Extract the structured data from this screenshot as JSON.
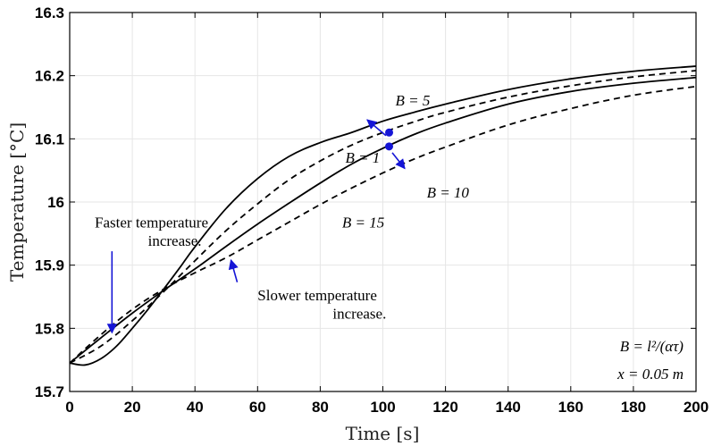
{
  "chart_data": {
    "type": "line",
    "title": "",
    "xlabel": "Time [s]",
    "ylabel": "Temperature [°C]",
    "xlim": [
      0,
      200
    ],
    "ylim": [
      15.7,
      16.3
    ],
    "xticks": [
      0,
      20,
      40,
      60,
      80,
      100,
      120,
      140,
      160,
      180,
      200
    ],
    "yticks": [
      15.7,
      15.8,
      15.9,
      16,
      16.1,
      16.2,
      16.3
    ],
    "xtick_labels": [
      "0",
      "20",
      "40",
      "60",
      "80",
      "100",
      "120",
      "140",
      "160",
      "180",
      "200"
    ],
    "ytick_labels": [
      "15.7",
      "15.8",
      "15.9",
      "16",
      "16.1",
      "16.2",
      "16.3"
    ],
    "grid": true,
    "colors": {
      "curve": "#000000",
      "marker": "#1515d6",
      "arrow": "#1515d6",
      "grid": "#e6e6e6"
    },
    "series": [
      {
        "name": "B = 1",
        "style": "solid",
        "x": [
          0,
          5,
          10,
          15,
          20,
          25,
          30,
          35,
          40,
          50,
          60,
          70,
          80,
          90,
          100,
          110,
          120,
          140,
          160,
          180,
          200
        ],
        "y": [
          15.745,
          15.742,
          15.752,
          15.772,
          15.8,
          15.83,
          15.862,
          15.895,
          15.929,
          15.99,
          16.037,
          16.072,
          16.094,
          16.11,
          16.128,
          16.142,
          16.155,
          16.178,
          16.195,
          16.207,
          16.215
        ]
      },
      {
        "name": "B = 5",
        "style": "dashed",
        "x": [
          0,
          10,
          20,
          30,
          40,
          50,
          60,
          70,
          80,
          90,
          100,
          110,
          120,
          140,
          160,
          180,
          200
        ],
        "y": [
          15.745,
          15.772,
          15.812,
          15.858,
          15.907,
          15.955,
          15.997,
          16.035,
          16.065,
          16.09,
          16.11,
          16.127,
          16.142,
          16.166,
          16.184,
          16.198,
          16.208
        ]
      },
      {
        "name": "B = 10",
        "style": "solid",
        "x": [
          0,
          10,
          20,
          30,
          40,
          50,
          60,
          70,
          80,
          90,
          100,
          110,
          120,
          140,
          160,
          180,
          200
        ],
        "y": [
          15.745,
          15.785,
          15.824,
          15.86,
          15.894,
          15.93,
          15.965,
          15.998,
          16.03,
          16.06,
          16.085,
          16.107,
          16.125,
          16.155,
          16.175,
          16.188,
          16.197
        ]
      },
      {
        "name": "B = 15",
        "style": "dashed",
        "x": [
          0,
          10,
          20,
          30,
          40,
          50,
          60,
          70,
          80,
          90,
          100,
          110,
          120,
          140,
          160,
          180,
          200
        ],
        "y": [
          15.745,
          15.79,
          15.83,
          15.862,
          15.888,
          15.912,
          15.94,
          15.968,
          15.996,
          16.022,
          16.046,
          16.068,
          16.087,
          16.122,
          16.148,
          16.169,
          16.183
        ]
      }
    ],
    "markers": [
      {
        "x": 102,
        "y": 16.11
      },
      {
        "x": 102,
        "y": 16.088
      }
    ],
    "annotations": [
      {
        "id": "b1",
        "text": "B = 1",
        "x": 88,
        "y": 16.062
      },
      {
        "id": "b5",
        "text": "B = 5",
        "x": 104,
        "y": 16.153
      },
      {
        "id": "b10",
        "text": "B = 10",
        "x": 114,
        "y": 16.007
      },
      {
        "id": "b15",
        "text": "B = 15",
        "x": 87,
        "y": 15.96
      },
      {
        "id": "faster1",
        "text": "Faster temperature",
        "x": 8,
        "y": 15.96
      },
      {
        "id": "faster2",
        "text": "increase.",
        "x": 25,
        "y": 15.931
      },
      {
        "id": "slower1",
        "text": "Slower temperature",
        "x": 60,
        "y": 15.844
      },
      {
        "id": "slower2",
        "text": "increase.",
        "x": 84,
        "y": 15.815
      },
      {
        "id": "formula",
        "text": "B = l²/(ατ)",
        "x": 196,
        "y": 15.764
      },
      {
        "id": "xpos",
        "text": "x = 0.05 m",
        "x": 196,
        "y": 15.72
      }
    ],
    "arrows": [
      {
        "from": [
          101,
          16.105
        ],
        "to": [
          95,
          16.13
        ]
      },
      {
        "from": [
          103,
          16.078
        ],
        "to": [
          107,
          16.053
        ]
      },
      {
        "from": [
          13.5,
          15.922
        ],
        "to": [
          13.5,
          15.793
        ]
      },
      {
        "from": [
          53.5,
          15.873
        ],
        "to": [
          51.5,
          15.908
        ]
      }
    ],
    "legend": "none"
  }
}
